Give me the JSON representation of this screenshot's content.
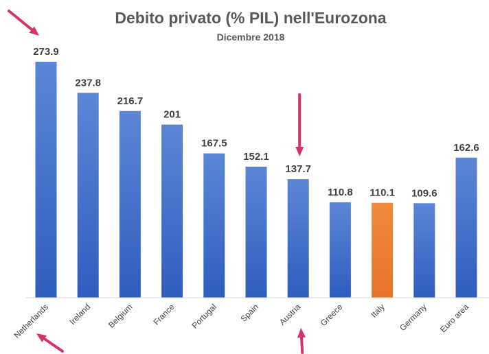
{
  "chart_data": {
    "type": "bar",
    "title": "Debito privato (% PIL) nell'Eurozona",
    "subtitle": "Dicembre 2018",
    "xlabel": "",
    "ylabel": "",
    "ylim": [
      0,
      280
    ],
    "grid": false,
    "legend": "none",
    "categories": [
      "Netherlands",
      "Ireland",
      "Belgium",
      "France",
      "Portugal",
      "Spain",
      "Austria",
      "Greece",
      "Italy",
      "Germany",
      "Euro area"
    ],
    "values": [
      273.9,
      237.8,
      216.7,
      201,
      167.5,
      152.1,
      137.7,
      110.8,
      110.1,
      109.6,
      162.6
    ],
    "value_labels": [
      "273.9",
      "237.8",
      "216.7",
      "201",
      "167.5",
      "152.1",
      "137.7",
      "110.8",
      "110.1",
      "109.6",
      "162.6"
    ],
    "colors": {
      "bar_default": "#4472C4",
      "bar_highlight": "#ED7D31",
      "arrow": "#D6336C",
      "axis": "#D9D9D9"
    },
    "highlighted_category": "Italy",
    "arrow_annotations": [
      "Netherlands",
      "Austria"
    ]
  }
}
